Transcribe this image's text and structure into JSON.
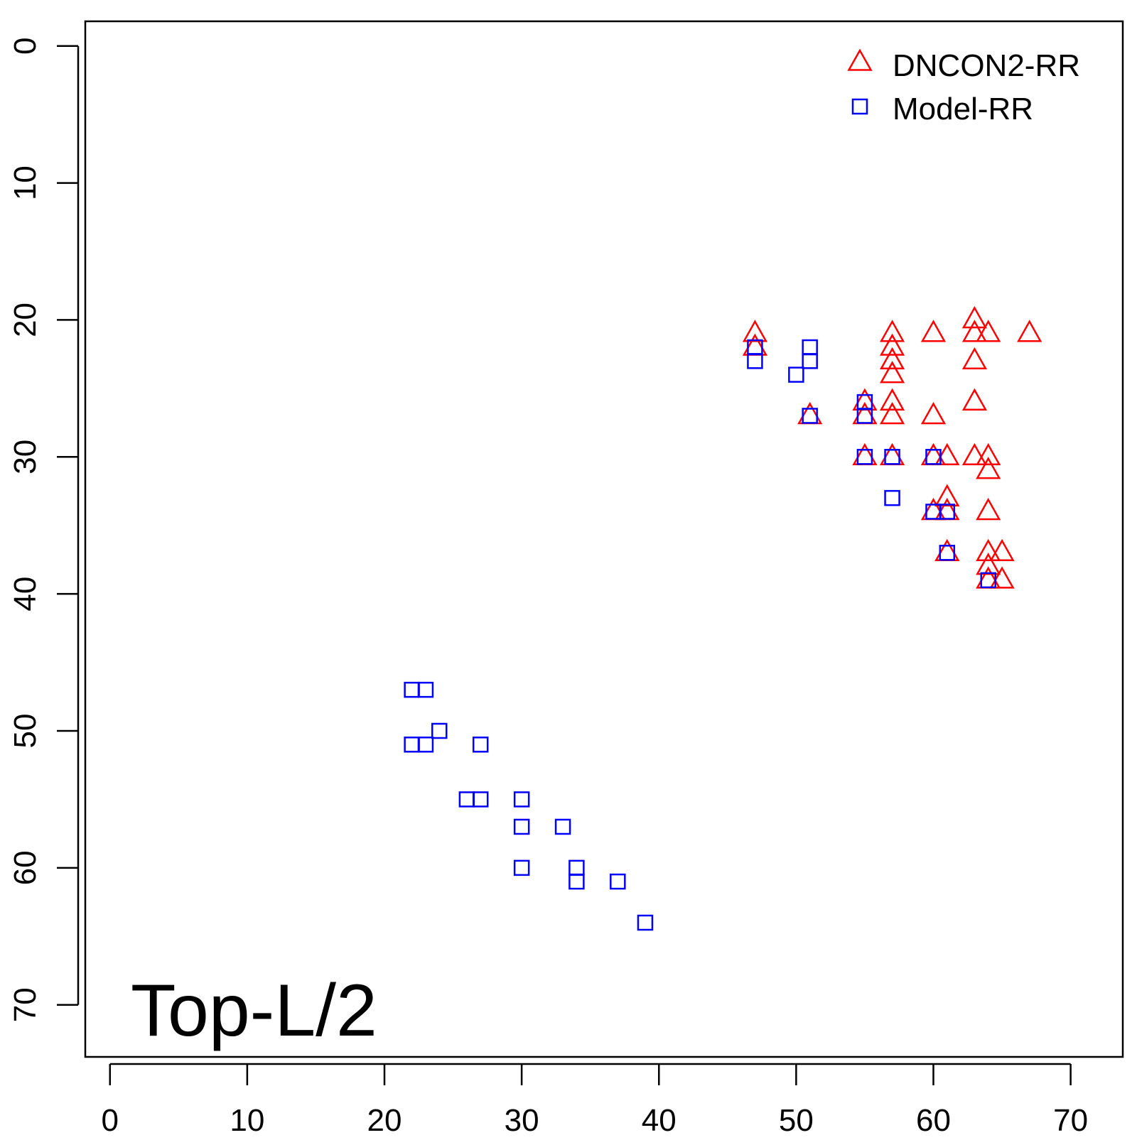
{
  "chart_data": {
    "type": "scatter",
    "title": "",
    "xlabel": "",
    "ylabel": "",
    "panel_label": "Top-L/2",
    "xlim": [
      -1.8,
      73.8
    ],
    "ylim": [
      -1.8,
      73.8
    ],
    "y_reversed": true,
    "x_ticks": [
      0,
      10,
      20,
      30,
      40,
      50,
      60,
      70
    ],
    "y_ticks": [
      0,
      10,
      20,
      30,
      40,
      50,
      60,
      70
    ],
    "grid": false,
    "legend_position": "top-right",
    "series": [
      {
        "name": "DNCON2-RR",
        "marker": "triangle",
        "color": "#ff0000",
        "points": [
          [
            47,
            21
          ],
          [
            47,
            22
          ],
          [
            51,
            27
          ],
          [
            55,
            26
          ],
          [
            55,
            27
          ],
          [
            55,
            30
          ],
          [
            57,
            21
          ],
          [
            57,
            22
          ],
          [
            57,
            23
          ],
          [
            57,
            24
          ],
          [
            57,
            26
          ],
          [
            57,
            27
          ],
          [
            57,
            30
          ],
          [
            60,
            21
          ],
          [
            60,
            27
          ],
          [
            60,
            30
          ],
          [
            60,
            34
          ],
          [
            61,
            30
          ],
          [
            61,
            33
          ],
          [
            61,
            34
          ],
          [
            61,
            37
          ],
          [
            63,
            20
          ],
          [
            63,
            21
          ],
          [
            63,
            23
          ],
          [
            63,
            26
          ],
          [
            63,
            30
          ],
          [
            64,
            21
          ],
          [
            64,
            30
          ],
          [
            64,
            31
          ],
          [
            64,
            34
          ],
          [
            64,
            37
          ],
          [
            64,
            38
          ],
          [
            64,
            39
          ],
          [
            65,
            37
          ],
          [
            65,
            39
          ],
          [
            67,
            21
          ]
        ]
      },
      {
        "name": "Model-RR",
        "marker": "square",
        "color": "#0000ff",
        "points": [
          [
            47,
            22
          ],
          [
            47,
            23
          ],
          [
            50,
            24
          ],
          [
            51,
            22
          ],
          [
            51,
            23
          ],
          [
            51,
            27
          ],
          [
            55,
            26
          ],
          [
            55,
            27
          ],
          [
            55,
            30
          ],
          [
            57,
            30
          ],
          [
            57,
            33
          ],
          [
            60,
            30
          ],
          [
            60,
            34
          ],
          [
            61,
            34
          ],
          [
            61,
            37
          ],
          [
            64,
            39
          ],
          [
            22,
            47
          ],
          [
            23,
            47
          ],
          [
            24,
            50
          ],
          [
            22,
            51
          ],
          [
            23,
            51
          ],
          [
            27,
            51
          ],
          [
            26,
            55
          ],
          [
            27,
            55
          ],
          [
            30,
            55
          ],
          [
            30,
            57
          ],
          [
            33,
            57
          ],
          [
            30,
            60
          ],
          [
            34,
            60
          ],
          [
            34,
            61
          ],
          [
            37,
            61
          ],
          [
            39,
            64
          ]
        ]
      }
    ]
  }
}
